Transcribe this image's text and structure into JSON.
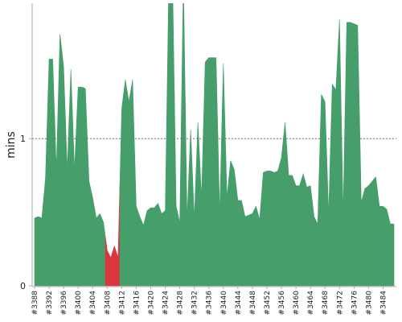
{
  "chart_data": {
    "type": "area",
    "y_label": "mins",
    "categories": [
      "#3388",
      null,
      null,
      null,
      "#3392",
      null,
      null,
      null,
      "#3396",
      null,
      null,
      null,
      "#3400",
      null,
      null,
      null,
      "#3404",
      null,
      null,
      null,
      "#3408",
      null,
      null,
      null,
      "#3412",
      null,
      null,
      null,
      "#3416",
      null,
      null,
      null,
      "#3420",
      null,
      null,
      null,
      "#3424",
      null,
      null,
      null,
      "#3428",
      null,
      null,
      null,
      "#3432",
      null,
      null,
      null,
      "#3436",
      null,
      null,
      null,
      "#3440",
      null,
      null,
      null,
      "#3444",
      null,
      null,
      null,
      "#3448",
      null,
      null,
      null,
      "#3452",
      null,
      null,
      null,
      "#3456",
      null,
      null,
      null,
      "#3460",
      null,
      null,
      null,
      "#3464",
      null,
      null,
      null,
      "#3468",
      null,
      null,
      null,
      "#3472",
      null,
      null,
      null,
      "#3476",
      null,
      null,
      null,
      "#3480",
      null,
      null,
      null,
      "#3484",
      null,
      null,
      null
    ],
    "values": [
      0.46,
      0.47,
      0.46,
      0.73,
      1.54,
      1.54,
      0.79,
      1.71,
      1.49,
      0.79,
      1.47,
      0.79,
      1.35,
      1.35,
      1.34,
      0.71,
      0.6,
      0.46,
      0.49,
      0.43,
      0.24,
      0.19,
      0.27,
      0.19,
      1.2,
      1.4,
      1.25,
      1.4,
      0.54,
      0.47,
      0.41,
      0.51,
      0.53,
      0.53,
      0.56,
      0.49,
      0.51,
      2.1,
      2.1,
      0.54,
      0.43,
      2.1,
      0.46,
      1.06,
      0.46,
      1.11,
      0.6,
      1.52,
      1.55,
      1.55,
      1.55,
      0.49,
      1.51,
      0.6,
      0.85,
      0.79,
      0.58,
      0.58,
      0.47,
      0.48,
      0.49,
      0.54,
      0.45,
      0.77,
      0.78,
      0.78,
      0.77,
      0.78,
      0.87,
      1.11,
      0.75,
      0.75,
      0.68,
      0.68,
      0.76,
      0.67,
      0.68,
      0.47,
      0.42,
      1.3,
      1.25,
      0.49,
      1.37,
      1.33,
      1.81,
      0.49,
      1.79,
      1.79,
      1.78,
      1.77,
      0.57,
      0.66,
      0.68,
      0.71,
      0.74,
      0.54,
      0.54,
      0.52,
      0.42,
      0.42
    ],
    "colors": [
      "#469e6b",
      "#469e6b",
      "#469e6b",
      "#469e6b",
      "#469e6b",
      "#469e6b",
      "#469e6b",
      "#469e6b",
      "#469e6b",
      "#469e6b",
      "#469e6b",
      "#469e6b",
      "#469e6b",
      "#469e6b",
      "#469e6b",
      "#469e6b",
      "#469e6b",
      "#469e6b",
      "#469e6b",
      "#469e6b",
      "#d9363e",
      "#d9363e",
      "#d9363e",
      "#d9363e",
      "#469e6b",
      "#469e6b",
      "#469e6b",
      "#469e6b",
      "#469e6b",
      "#469e6b",
      "#469e6b",
      "#469e6b",
      "#469e6b",
      "#469e6b",
      "#469e6b",
      "#469e6b",
      "#469e6b",
      "#469e6b",
      "#469e6b",
      "#469e6b",
      "#469e6b",
      "#469e6b",
      "#469e6b",
      "#469e6b",
      "#469e6b",
      "#469e6b",
      "#469e6b",
      "#469e6b",
      "#469e6b",
      "#469e6b",
      "#469e6b",
      "#469e6b",
      "#469e6b",
      "#469e6b",
      "#469e6b",
      "#469e6b",
      "#469e6b",
      "#469e6b",
      "#469e6b",
      "#469e6b",
      "#469e6b",
      "#469e6b",
      "#469e6b",
      "#469e6b",
      "#469e6b",
      "#469e6b",
      "#469e6b",
      "#469e6b",
      "#469e6b",
      "#469e6b",
      "#469e6b",
      "#469e6b",
      "#469e6b",
      "#469e6b",
      "#469e6b",
      "#469e6b",
      "#469e6b",
      "#469e6b",
      "#469e6b",
      "#469e6b",
      "#469e6b",
      "#469e6b",
      "#469e6b",
      "#469e6b",
      "#469e6b",
      "#469e6b",
      "#469e6b",
      "#469e6b",
      "#469e6b",
      "#469e6b",
      "#469e6b",
      "#469e6b",
      "#469e6b",
      "#469e6b",
      "#469e6b",
      "#469e6b",
      "#469e6b",
      "#469e6b",
      "#469e6b",
      "#469e6b"
    ],
    "ylim": [
      0,
      1.92
    ],
    "yticks": [
      0,
      1
    ],
    "grid": true
  }
}
